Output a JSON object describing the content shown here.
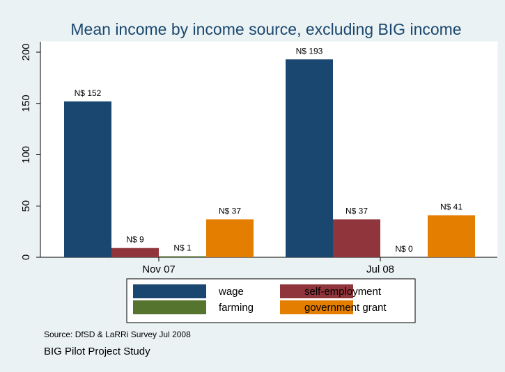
{
  "chart_data": {
    "type": "bar",
    "title": "Mean income by income source, excluding BIG income",
    "categories": [
      "Nov 07",
      "Jul 08"
    ],
    "series": [
      {
        "name": "wage",
        "color": "#1a476f",
        "values": [
          152,
          193
        ],
        "labels": [
          "N$ 152",
          "N$ 193"
        ]
      },
      {
        "name": "self-employment",
        "color": "#90353b",
        "values": [
          9,
          37
        ],
        "labels": [
          "N$ 9",
          "N$ 37"
        ]
      },
      {
        "name": "farming",
        "color": "#55752f",
        "values": [
          1,
          0
        ],
        "labels": [
          "N$ 1",
          "N$ 0"
        ]
      },
      {
        "name": "government grant",
        "color": "#e37e00",
        "values": [
          37,
          41
        ],
        "labels": [
          "N$ 37",
          "N$ 41"
        ]
      }
    ],
    "ylim": [
      0,
      200
    ],
    "yticks": [
      0,
      50,
      100,
      150,
      200
    ],
    "xlabel": "",
    "ylabel": "",
    "legend_position": "bottom",
    "grid": false
  },
  "notes": {
    "source": "Source: DfSD & LaRRi Survey Jul 2008",
    "caption": "BIG Pilot Project Study"
  },
  "colors": {
    "background": "#eaf2f3",
    "plot_background": "#ffffff",
    "title": "#1a476f"
  }
}
